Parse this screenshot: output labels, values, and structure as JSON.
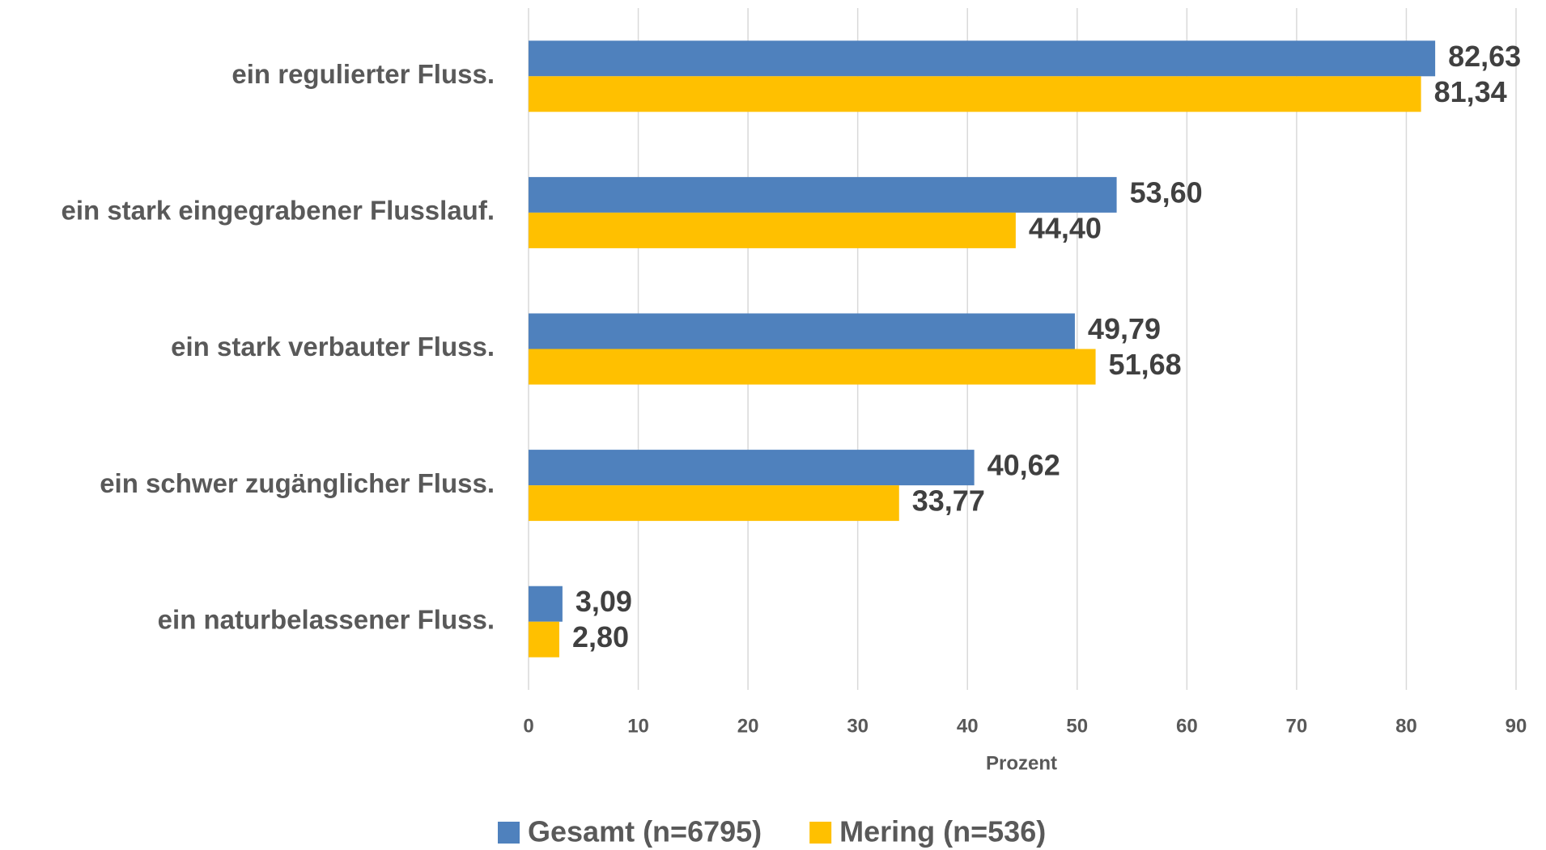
{
  "chart_data": {
    "type": "hbar",
    "categories": [
      "ein regulierter Fluss.",
      "ein stark eingegrabener Flusslauf.",
      "ein stark verbauter Fluss.",
      "ein schwer zugänglicher Fluss.",
      "ein naturbelassener Fluss."
    ],
    "series": [
      {
        "name": "Gesamt (n=6795)",
        "color": "#4f81bd",
        "values": [
          82.63,
          53.6,
          49.79,
          40.62,
          3.09
        ],
        "value_labels": [
          "82,63",
          "53,60",
          "49,79",
          "40,62",
          "3,09"
        ]
      },
      {
        "name": "Mering (n=536)",
        "color": "#ffc000",
        "values": [
          81.34,
          44.4,
          51.68,
          33.77,
          2.8
        ],
        "value_labels": [
          "81,34",
          "44,40",
          "51,68",
          "33,77",
          "2,80"
        ]
      }
    ],
    "xlabel": "Prozent",
    "xlim": [
      0,
      90
    ],
    "xticks": [
      0,
      10,
      20,
      30,
      40,
      50,
      60,
      70,
      80,
      90
    ],
    "grid": true,
    "legend": "bottom"
  }
}
